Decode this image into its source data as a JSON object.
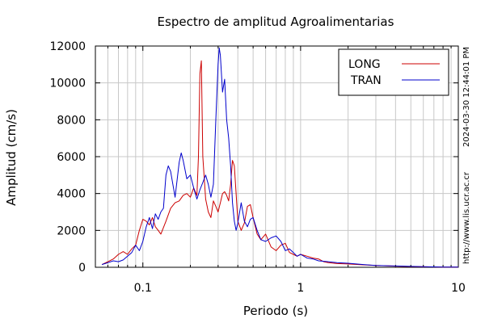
{
  "chart_data": {
    "type": "line",
    "title": "Espectro de amplitud Agroalimentarias",
    "xlabel": "Periodo (s)",
    "ylabel": "Amplitud (cm/s)",
    "x_scale": "log",
    "xlim": [
      0.05,
      10
    ],
    "ylim": [
      0,
      12000
    ],
    "x_ticks": [
      0.1,
      1,
      10
    ],
    "x_tick_labels": [
      "0.1",
      "1",
      "10"
    ],
    "y_ticks": [
      0,
      2000,
      4000,
      6000,
      8000,
      10000,
      12000
    ],
    "y_tick_labels": [
      "0",
      "2000",
      "4000",
      "6000",
      "8000",
      "10000",
      "12000"
    ],
    "grid": true,
    "legend_position": "top-right",
    "side_labels": {
      "timestamp": "2024-03-30 12:44:01 PM",
      "url": "http://www.lis.ucr.ac.cr"
    },
    "series": [
      {
        "name": "LONG",
        "color": "#cc0000",
        "x": [
          0.055,
          0.06,
          0.065,
          0.07,
          0.075,
          0.08,
          0.085,
          0.09,
          0.095,
          0.1,
          0.105,
          0.11,
          0.115,
          0.12,
          0.125,
          0.13,
          0.14,
          0.15,
          0.16,
          0.17,
          0.18,
          0.19,
          0.2,
          0.21,
          0.22,
          0.225,
          0.23,
          0.235,
          0.24,
          0.25,
          0.26,
          0.27,
          0.28,
          0.29,
          0.3,
          0.31,
          0.32,
          0.33,
          0.34,
          0.35,
          0.36,
          0.37,
          0.38,
          0.39,
          0.4,
          0.42,
          0.44,
          0.46,
          0.48,
          0.5,
          0.53,
          0.56,
          0.6,
          0.65,
          0.7,
          0.75,
          0.8,
          0.85,
          0.9,
          0.95,
          1.0,
          1.1,
          1.2,
          1.3,
          1.4,
          1.5,
          1.7,
          2.0,
          2.5,
          3.0,
          4.0,
          5.0,
          6.0,
          8.0,
          10.0
        ],
        "y": [
          150,
          300,
          450,
          700,
          850,
          700,
          1000,
          1200,
          2000,
          2600,
          2500,
          2300,
          2700,
          2200,
          2000,
          1800,
          2500,
          3200,
          3500,
          3600,
          3900,
          4000,
          3800,
          4300,
          3900,
          6000,
          10500,
          11200,
          6000,
          3700,
          3000,
          2700,
          3600,
          3300,
          3000,
          3500,
          4000,
          4100,
          3900,
          3600,
          4500,
          5800,
          5500,
          4000,
          2500,
          2000,
          2400,
          3300,
          3400,
          2700,
          1800,
          1500,
          1800,
          1100,
          900,
          1200,
          1300,
          800,
          700,
          600,
          700,
          600,
          500,
          450,
          300,
          250,
          200,
          180,
          130,
          100,
          60,
          40,
          25,
          15,
          10
        ]
      },
      {
        "name": "TRAN",
        "color": "#0000cc",
        "x": [
          0.055,
          0.06,
          0.065,
          0.07,
          0.075,
          0.08,
          0.085,
          0.09,
          0.095,
          0.1,
          0.105,
          0.11,
          0.115,
          0.12,
          0.125,
          0.13,
          0.135,
          0.14,
          0.145,
          0.15,
          0.16,
          0.17,
          0.175,
          0.18,
          0.19,
          0.2,
          0.21,
          0.22,
          0.23,
          0.24,
          0.25,
          0.26,
          0.27,
          0.28,
          0.29,
          0.3,
          0.305,
          0.31,
          0.32,
          0.33,
          0.34,
          0.35,
          0.36,
          0.37,
          0.38,
          0.39,
          0.4,
          0.42,
          0.44,
          0.46,
          0.48,
          0.5,
          0.53,
          0.56,
          0.6,
          0.65,
          0.7,
          0.75,
          0.8,
          0.85,
          0.9,
          0.95,
          1.0,
          1.1,
          1.2,
          1.3,
          1.5,
          1.7,
          2.0,
          2.5,
          3.0,
          4.0,
          5.0,
          6.0,
          8.0,
          10.0
        ],
        "y": [
          150,
          250,
          350,
          300,
          400,
          600,
          800,
          1200,
          900,
          1400,
          2200,
          2700,
          2100,
          2900,
          2600,
          3000,
          3200,
          5000,
          5500,
          5200,
          3800,
          5700,
          6200,
          5800,
          4800,
          5000,
          4300,
          3700,
          4200,
          4600,
          5000,
          4500,
          3800,
          4500,
          8000,
          11000,
          11900,
          11500,
          9500,
          10200,
          8000,
          7000,
          5500,
          3500,
          2500,
          2000,
          2400,
          3500,
          2500,
          2200,
          2600,
          2700,
          2000,
          1500,
          1400,
          1600,
          1700,
          1400,
          900,
          1000,
          800,
          600,
          700,
          500,
          450,
          350,
          300,
          250,
          220,
          150,
          100,
          70,
          50,
          30,
          15,
          10
        ]
      }
    ]
  }
}
